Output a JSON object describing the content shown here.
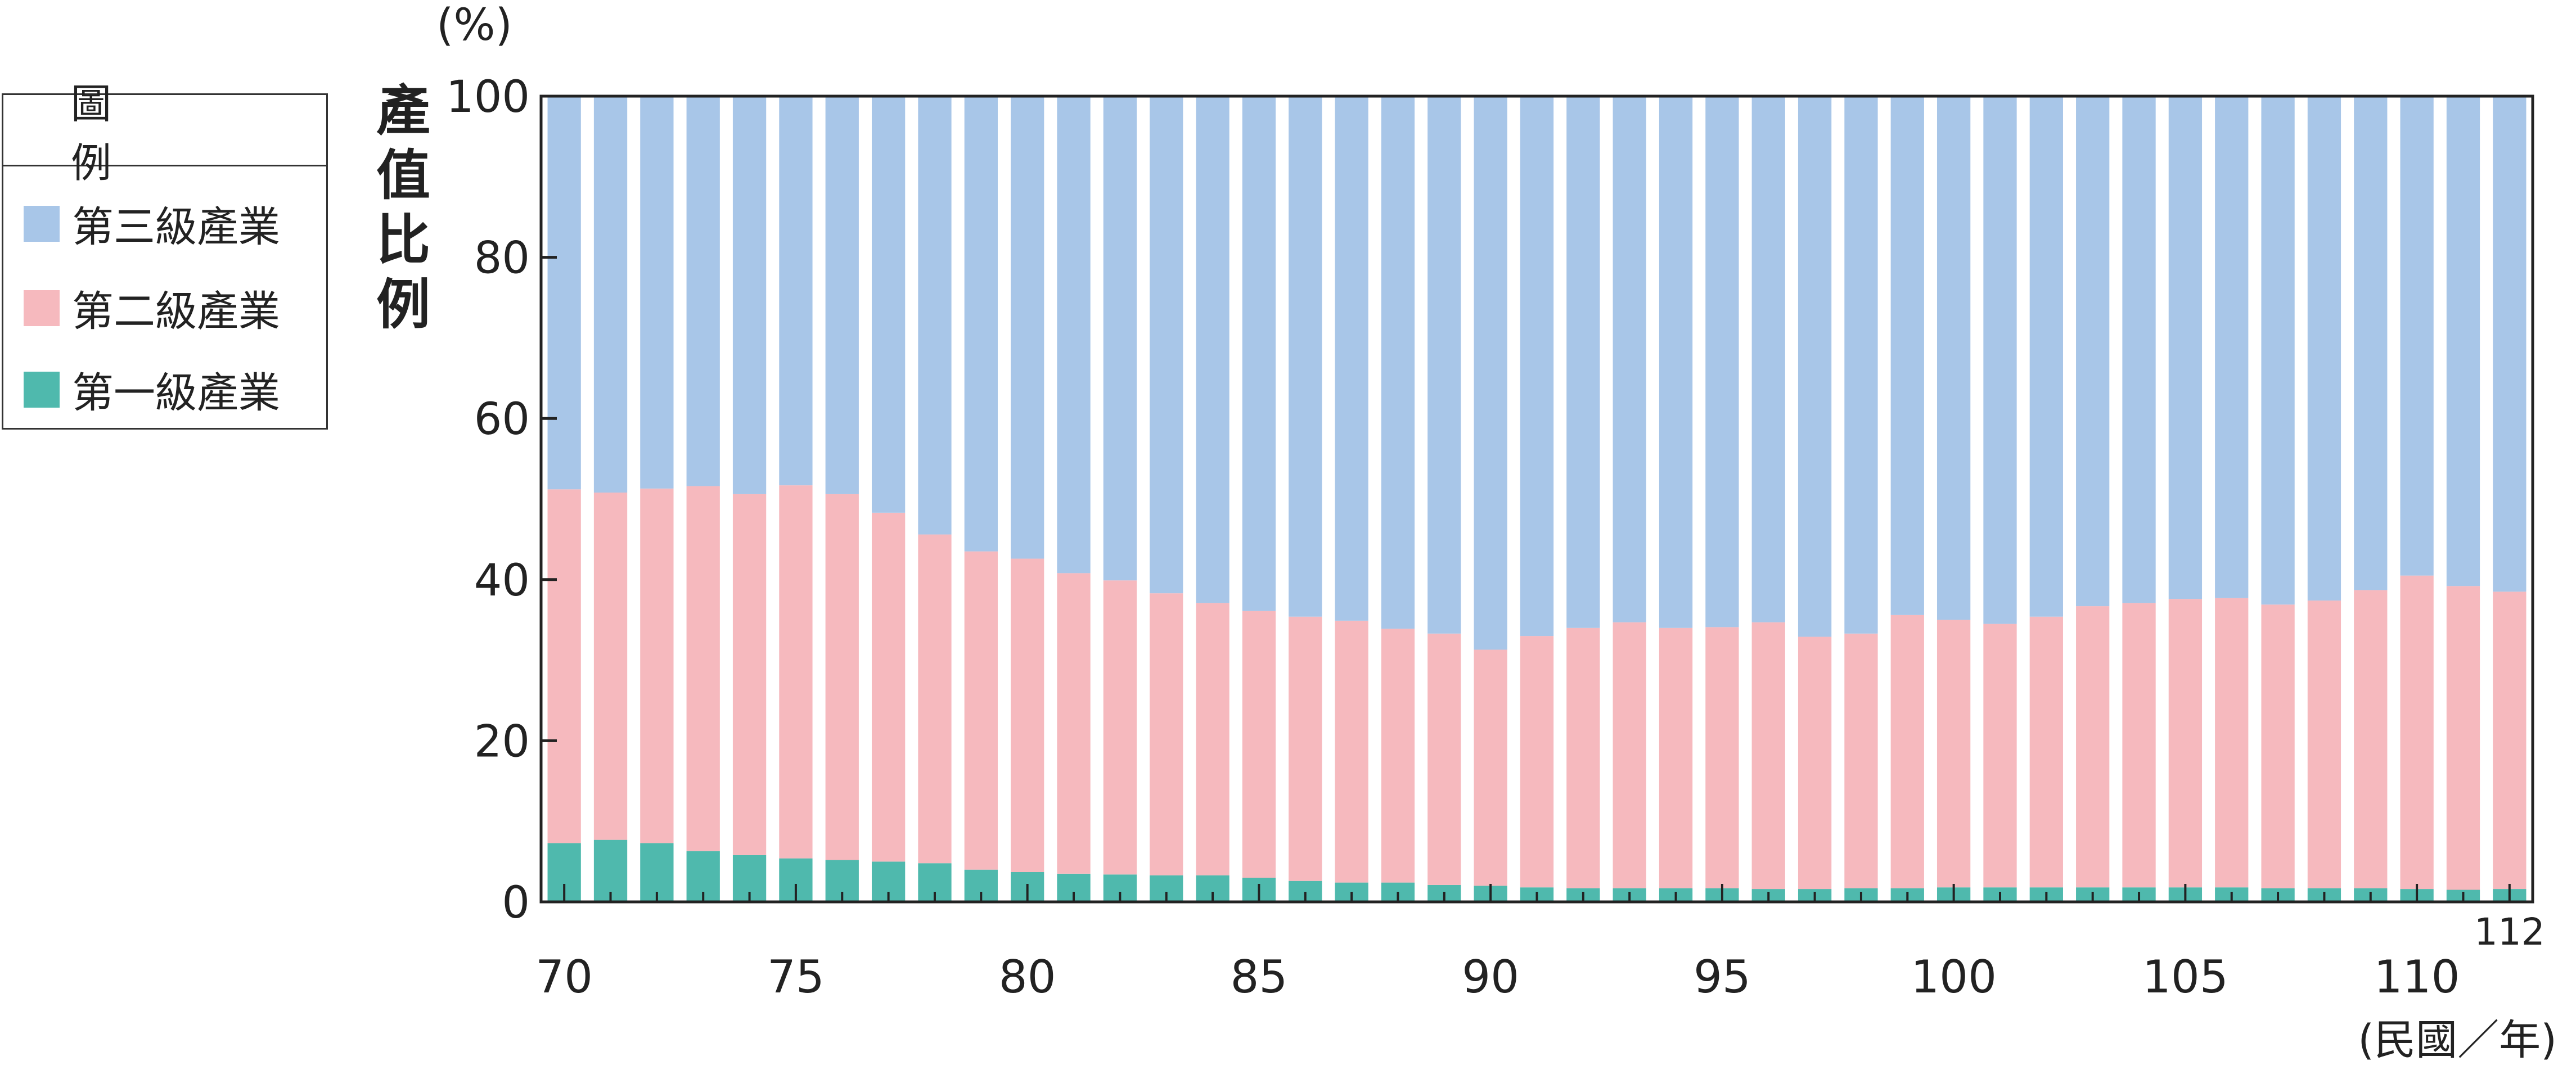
{
  "legend": {
    "title": "圖　例",
    "items": [
      {
        "label": "第三級產業",
        "color": "#a8c6e8"
      },
      {
        "label": "第二級產業",
        "color": "#f6b9be"
      },
      {
        "label": "第一級產業",
        "color": "#4fb9ad"
      }
    ]
  },
  "chart_data": {
    "type": "bar",
    "stacked": true,
    "title": "",
    "ylabel": "產值比例",
    "yunit": "(%)",
    "xunit": "(民國／年)",
    "ylim": [
      0,
      100
    ],
    "yticks": [
      0,
      20,
      40,
      60,
      80,
      100
    ],
    "xtick_labels": [
      "70",
      "75",
      "80",
      "85",
      "90",
      "95",
      "100",
      "105",
      "110",
      "112"
    ],
    "categories": [
      70,
      71,
      72,
      73,
      74,
      75,
      76,
      77,
      78,
      79,
      80,
      81,
      82,
      83,
      84,
      85,
      86,
      87,
      88,
      89,
      90,
      91,
      92,
      93,
      94,
      95,
      96,
      97,
      98,
      99,
      100,
      101,
      102,
      103,
      104,
      105,
      106,
      107,
      108,
      109,
      110,
      111,
      112
    ],
    "series": [
      {
        "name": "第一級產業",
        "color": "#4fb9ad",
        "values": [
          7.3,
          7.7,
          7.3,
          6.3,
          5.8,
          5.4,
          5.2,
          5.0,
          4.8,
          4.0,
          3.7,
          3.5,
          3.4,
          3.3,
          3.3,
          3.0,
          2.6,
          2.4,
          2.4,
          2.1,
          2.0,
          1.8,
          1.7,
          1.7,
          1.7,
          1.7,
          1.6,
          1.6,
          1.7,
          1.7,
          1.8,
          1.8,
          1.8,
          1.8,
          1.8,
          1.8,
          1.8,
          1.7,
          1.7,
          1.7,
          1.6,
          1.5,
          1.6
        ]
      },
      {
        "name": "第二級產業",
        "color": "#f6b9be",
        "values": [
          43.9,
          43.1,
          44.0,
          45.3,
          44.8,
          46.3,
          45.4,
          43.3,
          40.8,
          39.5,
          38.9,
          37.3,
          36.5,
          35.0,
          33.8,
          33.1,
          32.8,
          32.5,
          31.5,
          31.2,
          29.3,
          31.2,
          32.3,
          33.0,
          32.3,
          32.4,
          33.1,
          31.3,
          31.6,
          33.9,
          33.2,
          32.7,
          33.6,
          34.9,
          35.3,
          35.8,
          35.9,
          35.2,
          35.7,
          37.0,
          38.9,
          37.7,
          36.9
        ]
      },
      {
        "name": "第三級產業",
        "color": "#a8c6e8",
        "values": [
          48.8,
          49.2,
          48.7,
          48.4,
          49.4,
          48.3,
          49.4,
          51.7,
          54.4,
          56.5,
          57.4,
          59.2,
          60.1,
          61.7,
          62.9,
          63.9,
          64.6,
          65.1,
          66.1,
          66.7,
          68.7,
          67.0,
          66.0,
          65.3,
          66.0,
          65.9,
          65.3,
          67.1,
          66.7,
          64.4,
          65.0,
          65.5,
          64.6,
          63.3,
          62.9,
          62.4,
          62.3,
          63.1,
          62.6,
          61.3,
          59.5,
          60.8,
          61.5
        ]
      }
    ]
  }
}
